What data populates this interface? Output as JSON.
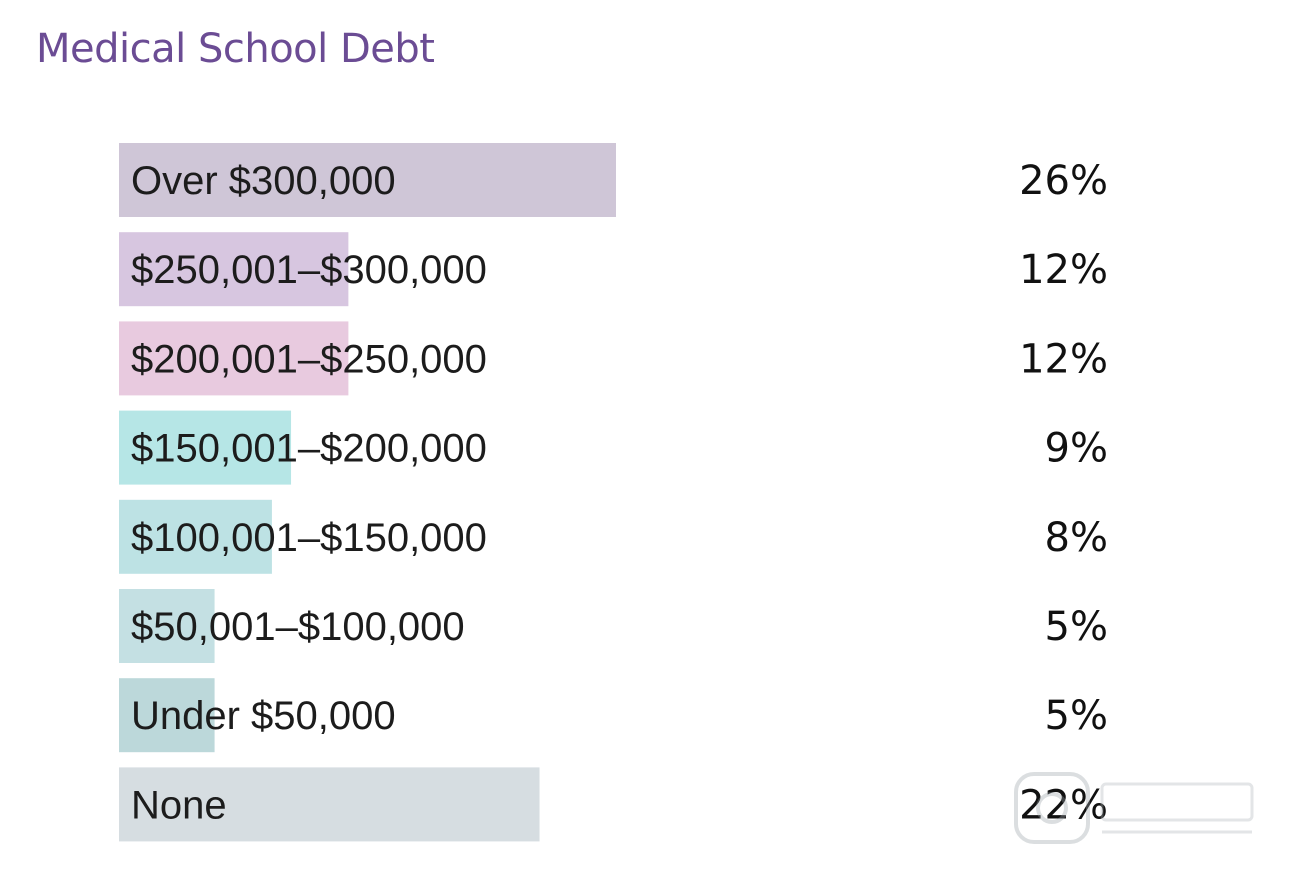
{
  "chart_data": {
    "type": "bar",
    "orientation": "horizontal",
    "title": "Medical School Debt",
    "categories": [
      "Over $300,000",
      "$250,001–$300,000",
      "$200,001–$250,000",
      "$150,001–$200,000",
      "$100,001–$150,000",
      "$50,001–$100,000",
      "Under $50,000",
      "None"
    ],
    "values": [
      26,
      12,
      12,
      9,
      8,
      5,
      5,
      22
    ],
    "value_labels": [
      "26%",
      "12%",
      "12%",
      "9%",
      "8%",
      "5%",
      "5%",
      "22%"
    ],
    "unit": "%",
    "xlim": [
      0,
      26
    ],
    "grid": false,
    "legend": "none",
    "colors": [
      "#cfc6d7",
      "#d7c6e0",
      "#e8cadf",
      "#b6e6e6",
      "#bde2e4",
      "#c4e0e3",
      "#bcd8da",
      "#d6dde1"
    ],
    "title_color": "#6b4c94"
  }
}
